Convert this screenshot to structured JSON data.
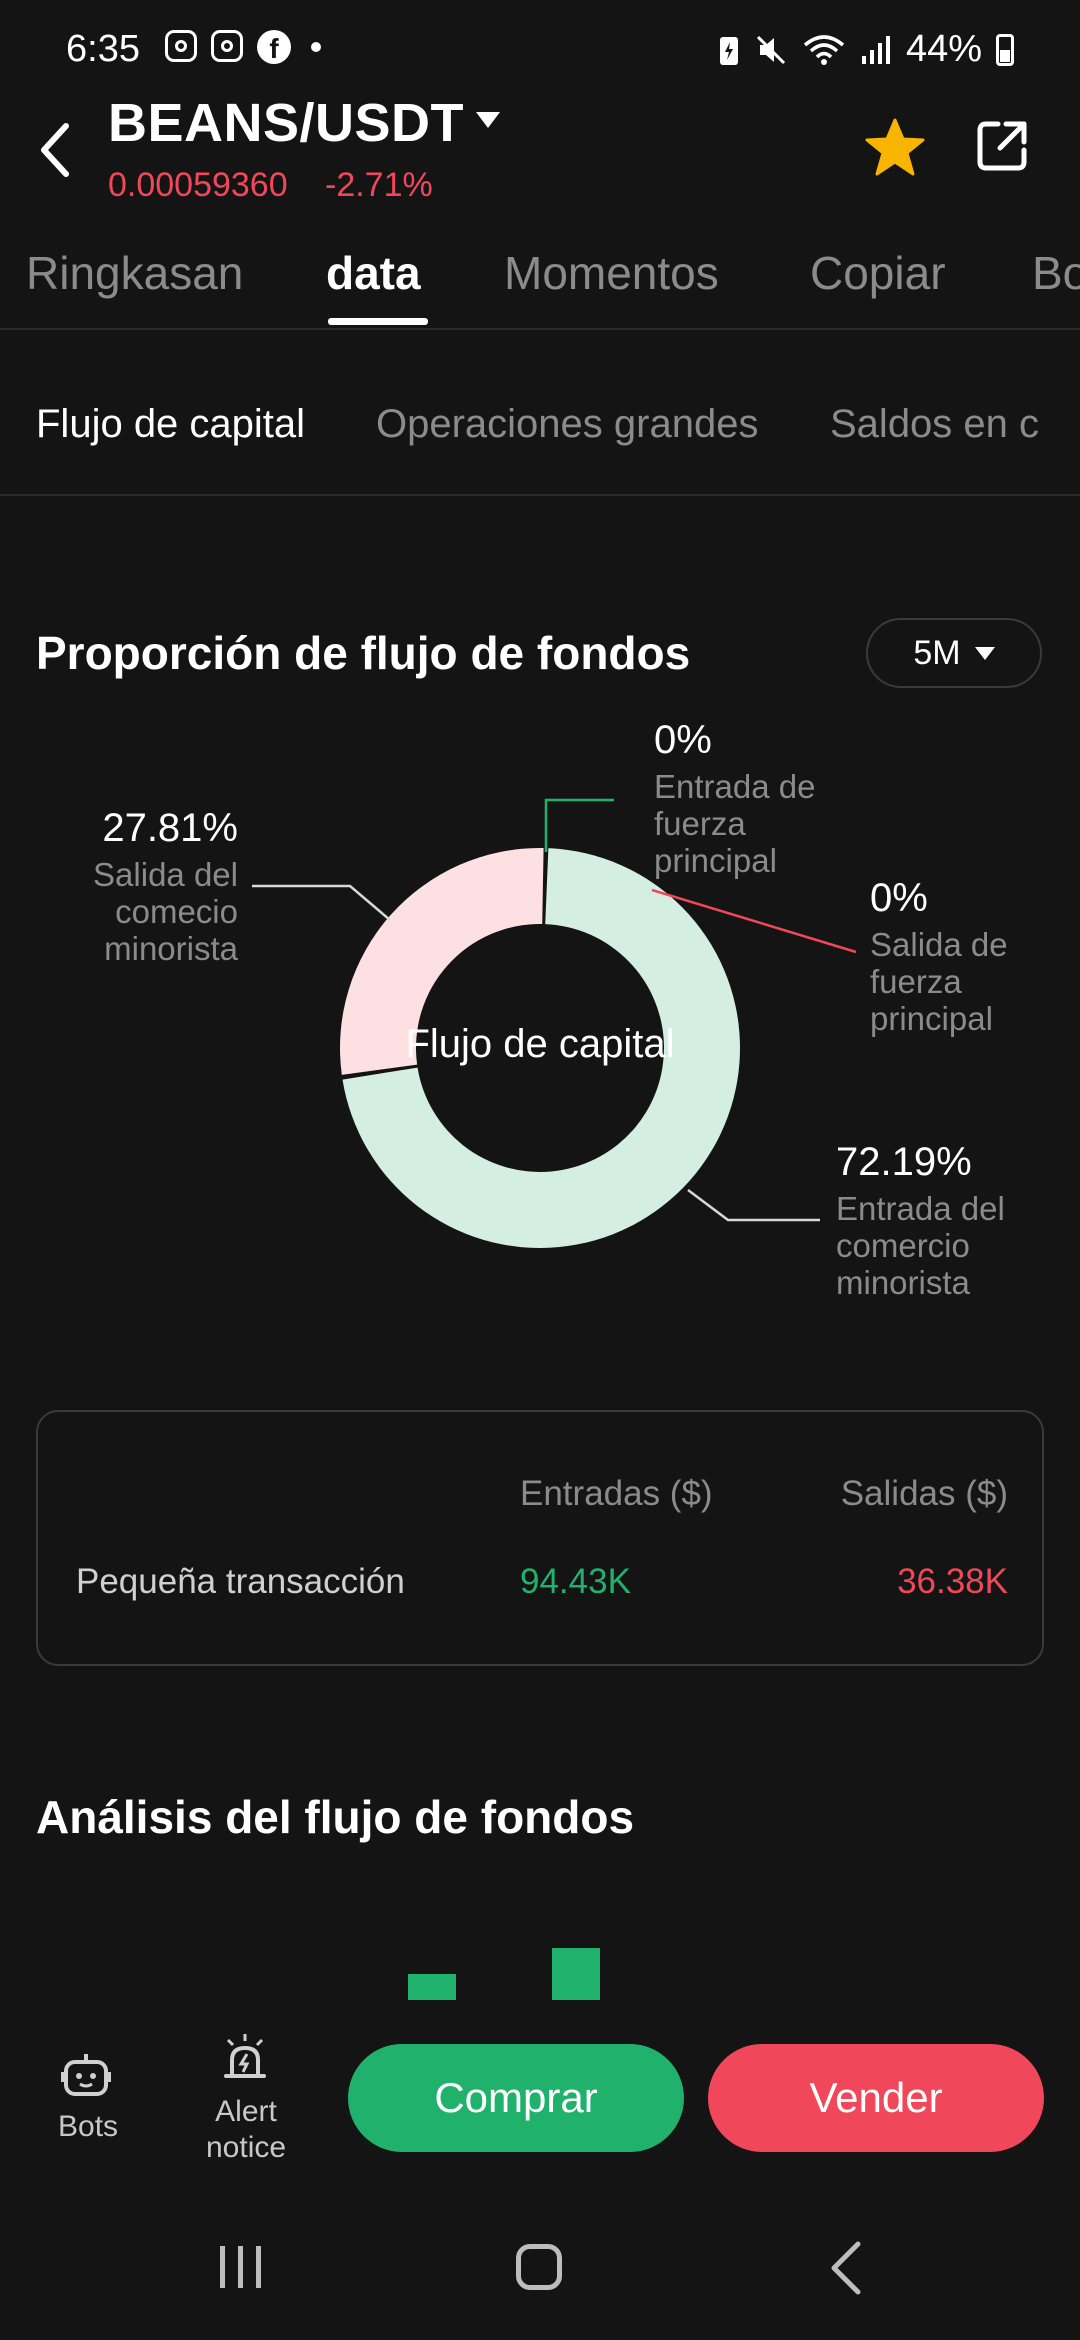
{
  "status_bar": {
    "time": "6:35",
    "battery": "44%",
    "icons": [
      "instagram-icon",
      "instagram-icon",
      "facebook-icon",
      "notification-dot",
      "battery-saver-icon",
      "mute-icon",
      "wifi-icon",
      "signal-icon",
      "battery-icon"
    ]
  },
  "header": {
    "pair": "BEANS/USDT",
    "price": "0.00059360",
    "change": "-2.71%",
    "icons": [
      "back-icon",
      "dropdown-caret-icon",
      "star-icon",
      "share-icon"
    ]
  },
  "tabs": [
    {
      "label": "Ringkasan",
      "active": false
    },
    {
      "label": "data",
      "active": true
    },
    {
      "label": "Momentos",
      "active": false
    },
    {
      "label": "Copiar",
      "active": false
    },
    {
      "label": "Bo",
      "active": false
    }
  ],
  "subtabs": [
    {
      "label": "Flujo de capital",
      "active": true
    },
    {
      "label": "Operaciones grandes",
      "active": false
    },
    {
      "label": "Saldos en c",
      "active": false
    }
  ],
  "fund_flow": {
    "title": "Proporción de flujo de fondos",
    "period": "5M"
  },
  "chart_data": {
    "type": "pie",
    "center_label": "Flujo de capital",
    "slices": [
      {
        "label": "Entrada de fuerza principal",
        "value": 0,
        "display": "0%",
        "color": "#20b26c"
      },
      {
        "label": "Salida de fuerza principal",
        "value": 0,
        "display": "0%",
        "color": "#f0475a"
      },
      {
        "label": "Entrada del comercio minorista",
        "value": 72.19,
        "display": "72.19%",
        "color": "#d4efe2"
      },
      {
        "label": "Salida del comecio minorista",
        "value": 27.81,
        "display": "27.81%",
        "color": "#fde0e2"
      }
    ]
  },
  "flow_table": {
    "col_in": "Entradas ($)",
    "col_out": "Salidas ($)",
    "rows": [
      {
        "label": "Pequeña transacción",
        "in": "94.43K",
        "out": "36.38K",
        "in_color": "#20b26c",
        "out_color": "#f0475a"
      }
    ]
  },
  "analysis": {
    "title": "Análisis del flujo de fondos"
  },
  "bottom_bar": {
    "bots_label": "Bots",
    "alert_label": "Alert notice",
    "buy_label": "Comprar",
    "sell_label": "Vender"
  },
  "colors": {
    "background": "#141414",
    "up": "#20b26c",
    "down": "#f0475a",
    "star": "#f7b500",
    "muted_text": "#8b8b8b"
  }
}
